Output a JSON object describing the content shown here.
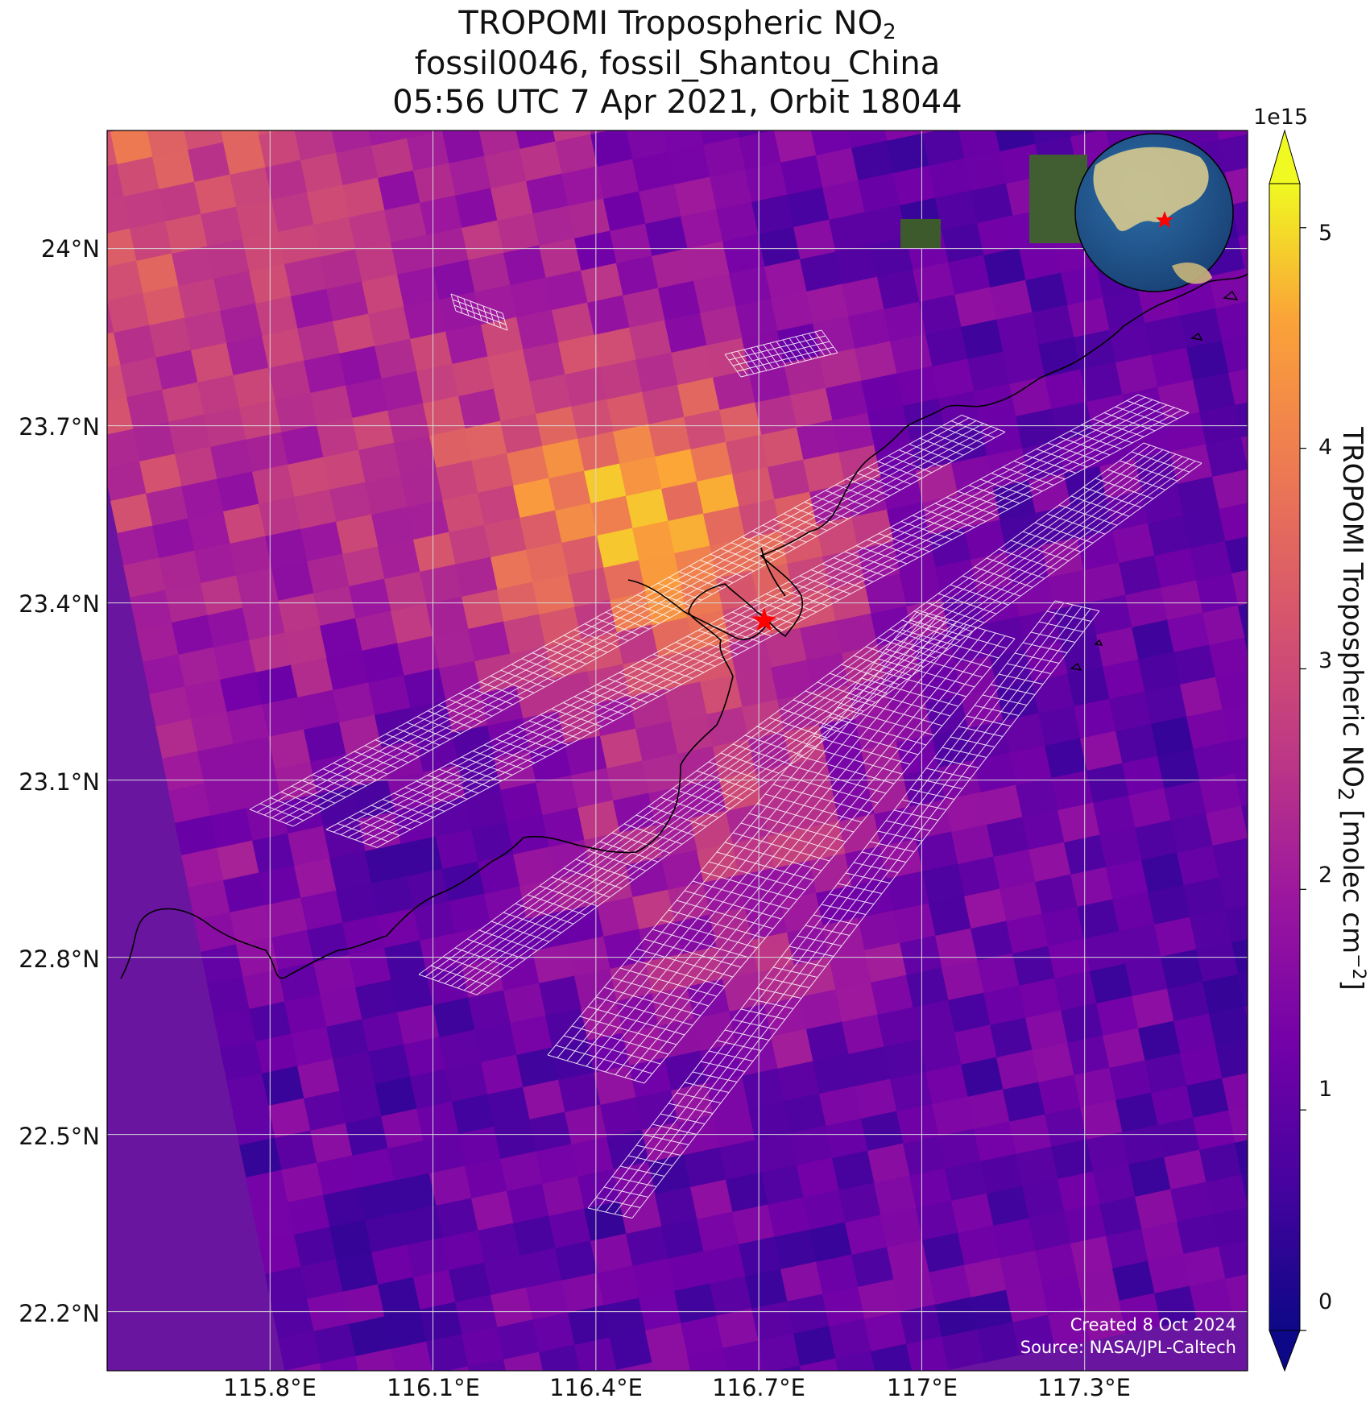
{
  "title": {
    "line1_main": "TROPOMI Tropospheric NO",
    "line1_sub": "2",
    "line2": "fossil0046, fossil_Shantou_China",
    "line3": "05:56 UTC 7 Apr 2021, Orbit 18044"
  },
  "map": {
    "lat_ticks": [
      "24°N",
      "23.7°N",
      "23.4°N",
      "23.1°N",
      "22.8°N",
      "22.5°N",
      "22.2°N"
    ],
    "lon_ticks": [
      "115.8°E",
      "116.1°E",
      "116.4°E",
      "116.7°E",
      "117°E",
      "117.3°E"
    ],
    "lat_values": [
      24.0,
      23.7,
      23.4,
      23.1,
      22.8,
      22.5,
      22.2
    ],
    "lon_values": [
      115.8,
      116.1,
      116.4,
      116.7,
      117.0,
      117.3
    ],
    "extent": {
      "lon": [
        115.5,
        117.6
      ],
      "lat": [
        22.1,
        24.2
      ]
    },
    "site_marker": {
      "lon": 116.71,
      "lat": 23.37,
      "color": "#ff0000"
    },
    "grid": true
  },
  "colorbar": {
    "label_main": "TROPOMI Tropospheric NO",
    "label_sub": "2",
    "label_units_pre": " [molec cm",
    "label_units_sup": "−2",
    "label_units_post": "]",
    "exponent": "1e15",
    "ticks": [
      "0",
      "1",
      "2",
      "3",
      "4",
      "5"
    ],
    "range": [
      0,
      5.2
    ],
    "colormap": "plasma",
    "colors": {
      "low": "#0d0887",
      "mid": "#cc4778",
      "high": "#f0f921"
    }
  },
  "footer": {
    "created": "Created 8 Oct 2024",
    "source": "Source: NASA/JPL-Caltech"
  }
}
